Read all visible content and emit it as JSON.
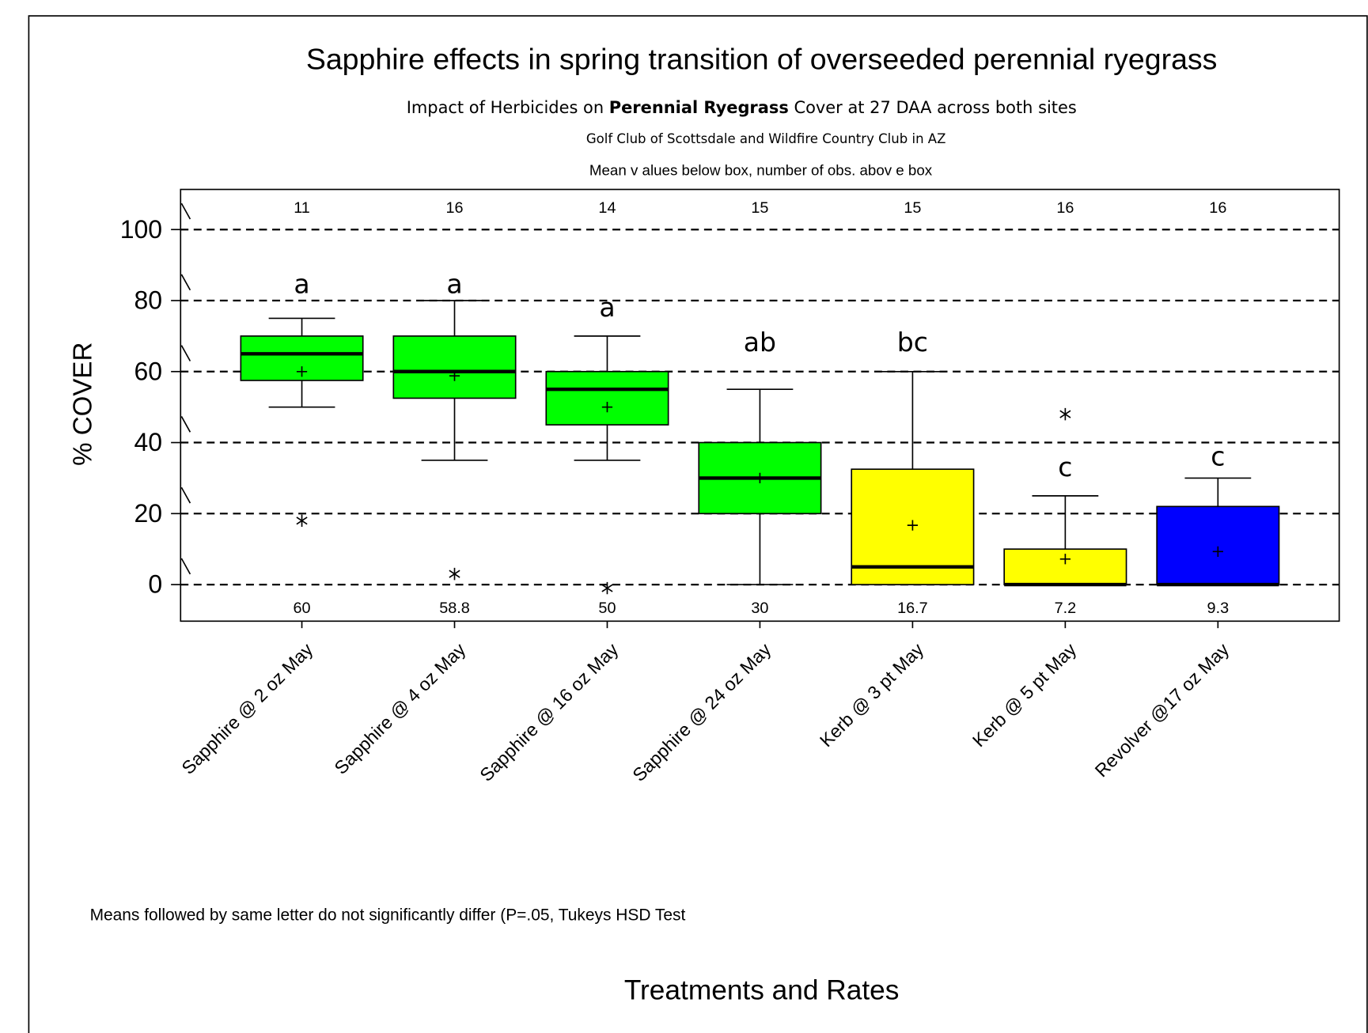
{
  "chart_data": {
    "type": "box",
    "title": "Sapphire effects in spring transition of overseeded perennial ryegrass",
    "subtitle": [
      "Impact of Herbicides on ",
      "Perennial Ryegrass",
      " Cover at 27 DAA across both sites"
    ],
    "subtitle2": "Golf Club of Scottsdale and Wildfire Country Club in AZ",
    "subtitle3": "Mean v alues below box, number of obs. abov e box",
    "ylabel": "% COVER",
    "xlabel": "Treatments and Rates",
    "footnote": "Means followed by same letter do not significantly differ (P=.05, Tukeys HSD Test",
    "categories": [
      "Sapphire @ 2 oz May",
      "Sapphire @ 4 oz May",
      "Sapphire @ 16 oz May",
      "Sapphire @ 24 oz May",
      "Kerb @ 3 pt May",
      "Kerb @ 5 pt May",
      "Revolver @17 oz May"
    ],
    "colors": [
      "#00ff00",
      "#00ff00",
      "#00ff00",
      "#00ff00",
      "#ffff00",
      "#ffff00",
      "#0000ff"
    ],
    "whislo": [
      50,
      35,
      35,
      0,
      0,
      0,
      0
    ],
    "q1": [
      57.5,
      52.5,
      45,
      20,
      0,
      0,
      0
    ],
    "med": [
      65,
      60,
      55,
      30,
      5,
      0,
      0
    ],
    "q3": [
      70,
      70,
      60,
      40,
      32.5,
      10,
      22
    ],
    "whishi": [
      75,
      80,
      70,
      55,
      60,
      25,
      30
    ],
    "means": [
      60,
      58.8,
      50,
      30,
      16.7,
      7.2,
      9.3
    ],
    "outliers": [
      [
        18
      ],
      [
        3
      ],
      [
        -1
      ],
      [],
      [],
      [
        48
      ],
      []
    ],
    "n_obs": [
      11,
      16,
      14,
      15,
      15,
      16,
      16
    ],
    "letters": [
      "a",
      "a",
      "a",
      "ab",
      "bc",
      "c",
      "c"
    ],
    "ylim": [
      -10.3,
      111.3
    ],
    "yticks": [
      0,
      20,
      40,
      60,
      80,
      100
    ],
    "grid": true
  }
}
